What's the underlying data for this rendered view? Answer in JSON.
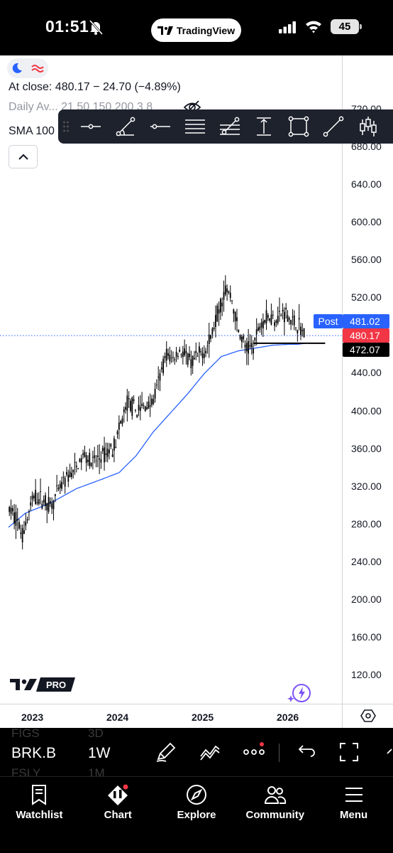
{
  "status_bar": {
    "time": "01:51",
    "app_pill": "TradingView",
    "battery": "45"
  },
  "legend": {
    "close_line": "At close: 480.17 − 24.70 (−4.89%)",
    "indicator_line": "Daily Av... 21 50 150 200 3 8",
    "sma_line": "SMA 100 close"
  },
  "drawing_toolbar": {
    "tools": [
      "horizontal-ray",
      "trend-angle",
      "horizontal-line",
      "parallel-channel",
      "fib-retracement",
      "price-range",
      "rectangle",
      "trend-line",
      "long-position"
    ]
  },
  "price_axis": {
    "ticks": [
      "720.00",
      "680.00",
      "640.00",
      "600.00",
      "560.00",
      "520.00",
      "480.00",
      "440.00",
      "400.00",
      "360.00",
      "320.00",
      "280.00",
      "240.00",
      "200.00",
      "160.00",
      "120.00"
    ],
    "post_tag": "Post",
    "post_price": "481.02",
    "last_price": "480.17",
    "line_price": "472.07"
  },
  "time_axis": {
    "ticks": [
      "2023",
      "2024",
      "2025",
      "2026"
    ]
  },
  "logo": {
    "badge": "PRO"
  },
  "symbol_bar": {
    "symbol": "BRK.B",
    "interval": "1W",
    "ghost_prev_symbol": "FIGS",
    "ghost_prev_interval": "3D",
    "ghost_next_symbol": "FSLY",
    "ghost_next_interval": "1M"
  },
  "nav": [
    {
      "label": "Watchlist",
      "icon": "bookmark-icon"
    },
    {
      "label": "Chart",
      "icon": "chart-icon"
    },
    {
      "label": "Explore",
      "icon": "compass-icon"
    },
    {
      "label": "Community",
      "icon": "people-icon"
    },
    {
      "label": "Menu",
      "icon": "menu-icon"
    }
  ],
  "chart_data": {
    "type": "candlestick",
    "symbol": "BRK.B",
    "interval": "1W",
    "ylim": [
      100,
      740
    ],
    "yticks": [
      120,
      160,
      200,
      240,
      280,
      320,
      360,
      400,
      440,
      480,
      520,
      560,
      600,
      640,
      680,
      720
    ],
    "xticks": [
      "2023",
      "2024",
      "2025",
      "2026"
    ],
    "x_range": [
      2022.7,
      2026.42
    ],
    "price_anchors": {
      "x": [
        2022.72,
        2022.8,
        2022.86,
        2023.0,
        2023.12,
        2023.2,
        2023.35,
        2023.5,
        2023.6,
        2023.68,
        2023.85,
        2023.95,
        2024.1,
        2024.2,
        2024.3,
        2024.4,
        2024.55,
        2024.62,
        2024.72,
        2024.85,
        2024.95,
        2025.05,
        2025.14,
        2025.25,
        2025.32,
        2025.4,
        2025.5,
        2025.58,
        2025.66,
        2025.75,
        2025.85,
        2025.95,
        2026.03,
        2026.12,
        2026.18
      ],
      "y": [
        295,
        285,
        268,
        310,
        305,
        300,
        325,
        340,
        355,
        345,
        355,
        365,
        410,
        400,
        405,
        410,
        460,
        455,
        465,
        450,
        460,
        470,
        500,
        530,
        520,
        485,
        465,
        470,
        495,
        500,
        500,
        505,
        495,
        490,
        480
      ]
    },
    "sma_anchors": {
      "x": [
        2022.7,
        2022.9,
        2023.2,
        2023.5,
        2023.8,
        2024.0,
        2024.2,
        2024.4,
        2024.6,
        2024.8,
        2025.0,
        2025.2,
        2025.4,
        2025.6,
        2025.8,
        2026.0,
        2026.1,
        2026.18
      ],
      "y": [
        277,
        292,
        303,
        318,
        328,
        335,
        353,
        378,
        398,
        418,
        440,
        458,
        464,
        467,
        470,
        471,
        471,
        472
      ]
    },
    "horizontal_line": {
      "price": 472.07,
      "x_from": 2025.58,
      "x_to": 2026.42
    },
    "last_price": 480.17,
    "post_price": 481.02
  }
}
